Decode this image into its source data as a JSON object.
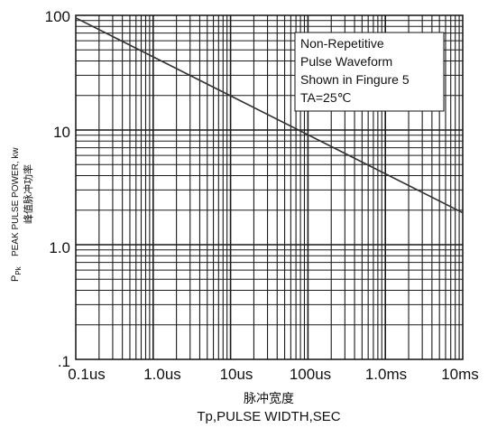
{
  "chart_data": {
    "type": "line",
    "x_scale": "log",
    "y_scale": "log",
    "xlim": [
      "0.1us",
      "10ms"
    ],
    "ylim": [
      ".1",
      "100"
    ],
    "grid": true,
    "x_tick_labels": [
      "0.1us",
      "1.0us",
      "10us",
      "100us",
      "1.0ms",
      "10ms"
    ],
    "y_tick_labels": [
      ".1",
      "1.0",
      "10",
      "100"
    ],
    "xlabel": "Tp,PULSE WIDTH,SEC",
    "xlabel_cn": "脉冲宽度",
    "ylabel_symbol": "P",
    "ylabel_subscript": "Pk",
    "ylabel": "PEAK PULSE POWER, kw",
    "ylabel_cn": "峰值脉冲功率",
    "annotation_lines": [
      "Non-Repetitive",
      "Pulse Waveform",
      "Shown in Fingure 5",
      "TA=25℃"
    ],
    "series": [
      {
        "x_seconds": [
          1e-07,
          0.01
        ],
        "y_kw": [
          95,
          1.9
        ]
      }
    ],
    "colors": {
      "line": "#333333",
      "grid": "#1a1a1a"
    }
  }
}
